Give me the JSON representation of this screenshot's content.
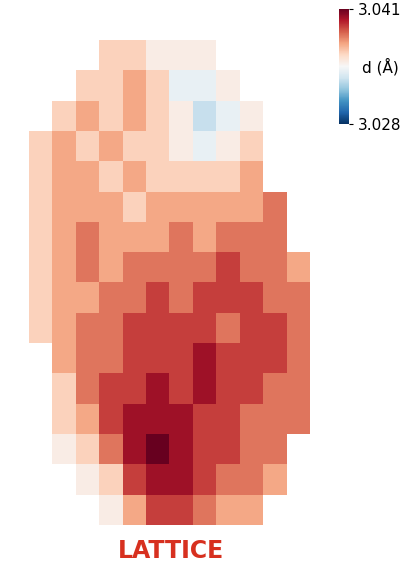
{
  "chart_data": {
    "type": "heatmap",
    "cells": [
      [
        null,
        null,
        null,
        3.036,
        3.036,
        3.035,
        3.035,
        3.035,
        null,
        null,
        null,
        null
      ],
      [
        null,
        null,
        3.036,
        3.036,
        3.037,
        3.036,
        3.034,
        3.034,
        3.035,
        null,
        null,
        null
      ],
      [
        null,
        3.036,
        3.037,
        3.036,
        3.037,
        3.036,
        3.035,
        3.033,
        3.034,
        3.035,
        null,
        null
      ],
      [
        3.036,
        3.037,
        3.036,
        3.037,
        3.036,
        3.036,
        3.035,
        3.034,
        3.035,
        3.036,
        null,
        null
      ],
      [
        3.036,
        3.037,
        3.037,
        3.036,
        3.037,
        3.036,
        3.036,
        3.036,
        3.036,
        3.037,
        null,
        null
      ],
      [
        3.036,
        3.037,
        3.037,
        3.037,
        3.036,
        3.037,
        3.037,
        3.037,
        3.037,
        3.037,
        3.038,
        null
      ],
      [
        3.036,
        3.037,
        3.038,
        3.037,
        3.037,
        3.037,
        3.038,
        3.037,
        3.038,
        3.038,
        3.038,
        null
      ],
      [
        3.036,
        3.037,
        3.038,
        3.037,
        3.038,
        3.038,
        3.038,
        3.038,
        3.039,
        3.038,
        3.038,
        3.037
      ],
      [
        3.036,
        3.037,
        3.037,
        3.038,
        3.038,
        3.039,
        3.038,
        3.039,
        3.039,
        3.039,
        3.038,
        3.038
      ],
      [
        3.036,
        3.037,
        3.038,
        3.038,
        3.039,
        3.039,
        3.039,
        3.039,
        3.038,
        3.039,
        3.039,
        3.038
      ],
      [
        null,
        3.037,
        3.038,
        3.038,
        3.039,
        3.039,
        3.039,
        3.04,
        3.039,
        3.039,
        3.039,
        3.038
      ],
      [
        null,
        3.036,
        3.038,
        3.039,
        3.039,
        3.04,
        3.039,
        3.04,
        3.039,
        3.039,
        3.038,
        3.038
      ],
      [
        null,
        3.036,
        3.037,
        3.039,
        3.04,
        3.04,
        3.04,
        3.039,
        3.039,
        3.038,
        3.038,
        3.038
      ],
      [
        null,
        3.035,
        3.036,
        3.038,
        3.04,
        3.041,
        3.04,
        3.039,
        3.039,
        3.038,
        3.038,
        null
      ],
      [
        null,
        null,
        3.035,
        3.036,
        3.039,
        3.04,
        3.04,
        3.039,
        3.038,
        3.038,
        3.037,
        null
      ],
      [
        null,
        null,
        null,
        3.035,
        3.037,
        3.039,
        3.039,
        3.038,
        3.037,
        3.037,
        null,
        null
      ]
    ],
    "color_range": [
      3.028,
      3.041
    ],
    "color_ticks": [
      3.028,
      3.041
    ],
    "colorbar_label": "d (Å)",
    "annotation": "LATTICE",
    "tick_labels": false
  }
}
